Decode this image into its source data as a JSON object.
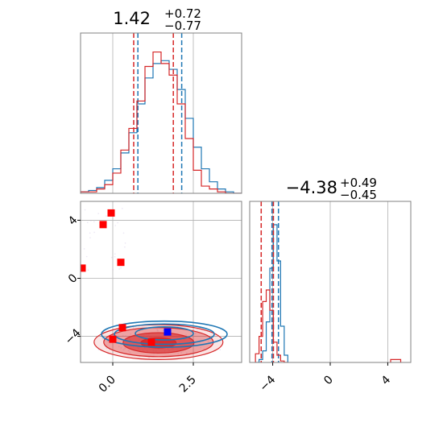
{
  "colors": {
    "red": "#d62728",
    "blue": "#1f77b4",
    "grid": "#b0b0b0",
    "frame": "#808080",
    "marker_red": "#ff0000",
    "marker_blue": "#0000ff"
  },
  "chart_data": [
    {
      "type": "histogram",
      "panel": "top-left",
      "title": {
        "main": "1.42",
        "sup": "+0.72",
        "sub": "−0.77"
      },
      "xlim": [
        -1.0,
        4.0
      ],
      "grid": true,
      "series": [
        {
          "color": "blue",
          "bin_edges": [
            -1.0,
            -0.75,
            -0.5,
            -0.25,
            0.0,
            0.25,
            0.5,
            0.75,
            1.0,
            1.25,
            1.5,
            1.75,
            2.0,
            2.25,
            2.5,
            2.75,
            3.0,
            3.25,
            3.5,
            3.75,
            4.0
          ],
          "counts": [
            0.01,
            0.02,
            0.04,
            0.09,
            0.17,
            0.28,
            0.42,
            0.62,
            0.8,
            0.9,
            0.92,
            0.86,
            0.72,
            0.52,
            0.32,
            0.17,
            0.08,
            0.03,
            0.01,
            0.0
          ],
          "quantiles": [
            0.78,
            2.14
          ]
        },
        {
          "color": "red",
          "bin_edges": [
            -1.0,
            -0.75,
            -0.5,
            -0.25,
            0.0,
            0.25,
            0.5,
            0.75,
            1.0,
            1.25,
            1.5,
            1.75,
            2.0,
            2.25,
            2.5,
            2.75,
            3.0,
            3.25,
            3.5,
            3.75,
            4.0
          ],
          "counts": [
            0.01,
            0.01,
            0.03,
            0.06,
            0.14,
            0.3,
            0.45,
            0.64,
            0.88,
            0.98,
            0.9,
            0.82,
            0.62,
            0.38,
            0.16,
            0.05,
            0.03,
            0.01,
            0.0,
            0.0
          ],
          "quantiles": [
            0.65,
            1.88
          ]
        }
      ]
    },
    {
      "type": "histogram",
      "panel": "bottom-right",
      "title": {
        "main": "−4.38",
        "sup": "+0.49",
        "sub": "−0.45"
      },
      "xlim": [
        -5.6,
        5.6
      ],
      "xticks": [
        "−4",
        "0",
        "4"
      ],
      "xtick_values": [
        -4,
        0,
        4
      ],
      "grid": true,
      "series": [
        {
          "color": "blue",
          "bin_edges": [
            -5.2,
            -4.95,
            -4.7,
            -4.45,
            -4.2,
            -3.95,
            -3.7,
            -3.45,
            -3.2,
            -2.95
          ],
          "counts": [
            0.0,
            0.02,
            0.08,
            0.28,
            0.65,
            0.95,
            0.7,
            0.25,
            0.05
          ],
          "quantiles": [
            -4.05,
            -3.6
          ]
        },
        {
          "color": "red",
          "bin_edges": [
            -5.2,
            -4.95,
            -4.7,
            -4.45,
            -4.2,
            -3.95,
            -3.7,
            -3.45,
            -3.2,
            -2.95
          ],
          "counts": [
            0.06,
            0.18,
            0.42,
            0.5,
            0.36,
            0.14,
            0.05,
            0.01,
            0.0
          ],
          "quantiles": [
            -4.8,
            -3.95
          ],
          "tail": {
            "x": [
              4.2,
              4.9
            ],
            "count": 0.02
          }
        }
      ]
    },
    {
      "type": "contour",
      "panel": "bottom-left",
      "xlim": [
        -1.0,
        4.0
      ],
      "ylim": [
        -5.8,
        5.3
      ],
      "xticks": [
        "0.0",
        "2.5"
      ],
      "xtick_values": [
        0.0,
        2.5
      ],
      "yticks": [
        "4",
        "0",
        "−4"
      ],
      "ytick_values": [
        4,
        0,
        -4
      ],
      "grid": true,
      "red_contours": [
        {
          "cx": 1.42,
          "cy": -4.45,
          "rx": 0.55,
          "ry": 0.35,
          "level": 1
        },
        {
          "cx": 1.42,
          "cy": -4.45,
          "rx": 1.1,
          "ry": 0.7,
          "level": 2
        },
        {
          "cx": 1.42,
          "cy": -4.4,
          "rx": 1.7,
          "ry": 1.0,
          "level": 3
        },
        {
          "cx": 1.42,
          "cy": -4.4,
          "rx": 2.0,
          "ry": 1.2,
          "level": 4
        }
      ],
      "blue_contours": [
        {
          "cx": 1.6,
          "cy": -3.8,
          "rx": 0.9,
          "ry": 0.45
        },
        {
          "cx": 1.6,
          "cy": -3.85,
          "rx": 1.55,
          "ry": 0.7
        },
        {
          "cx": 1.6,
          "cy": -3.85,
          "rx": 1.95,
          "ry": 0.9
        }
      ],
      "red_markers": [
        {
          "x": -0.05,
          "y": 4.5
        },
        {
          "x": -0.3,
          "y": 3.7
        },
        {
          "x": -0.95,
          "y": 0.7
        },
        {
          "x": 0.25,
          "y": 1.1
        },
        {
          "x": 0.3,
          "y": -3.4
        },
        {
          "x": 0.0,
          "y": -4.2
        },
        {
          "x": 1.2,
          "y": -4.4
        }
      ],
      "blue_markers": [
        {
          "x": 1.7,
          "y": -3.7
        }
      ]
    }
  ]
}
